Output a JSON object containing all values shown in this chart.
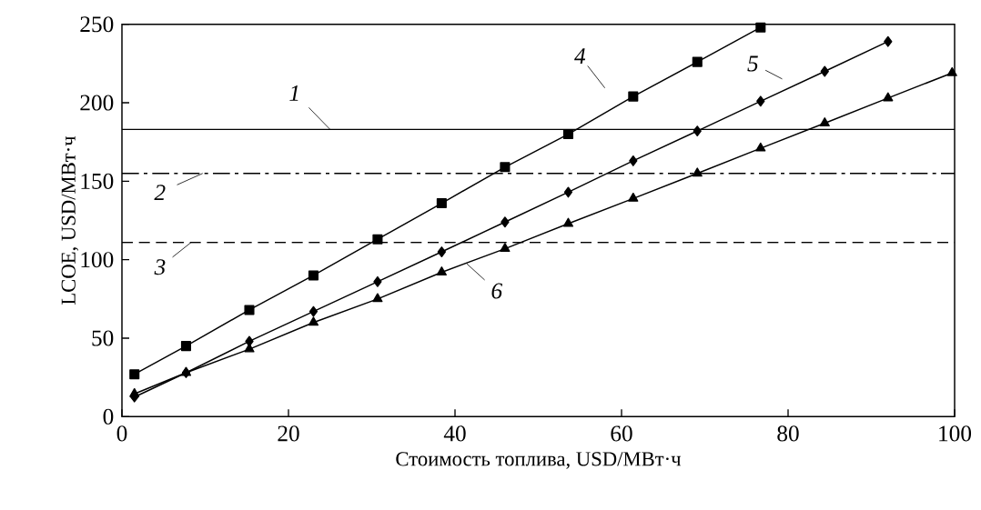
{
  "chart_data": {
    "type": "line",
    "xlabel": "Стоимость топлива, USD/МВт·ч",
    "ylabel": "LCOE, USD/МВт·ч",
    "xlim": [
      0,
      100
    ],
    "ylim": [
      0,
      250
    ],
    "xticks": [
      0,
      20,
      40,
      60,
      80,
      100
    ],
    "yticks": [
      0,
      50,
      100,
      150,
      200,
      250
    ],
    "series": [
      {
        "color": "#000000",
        "marker": "square",
        "x": [
          1.5,
          7.7,
          15.3,
          23.0,
          30.7,
          38.4,
          46.0,
          53.6,
          61.4,
          69.1,
          76.7
        ],
        "values": [
          27,
          45,
          68,
          90,
          113,
          136,
          159,
          180,
          204,
          226,
          248
        ]
      },
      {
        "color": "#000000",
        "marker": "diamond",
        "x": [
          1.5,
          7.7,
          15.3,
          23.0,
          30.7,
          38.4,
          46.0,
          53.6,
          61.4,
          69.1,
          76.7,
          84.4,
          92.0
        ],
        "values": [
          12.5,
          28,
          48,
          67,
          86,
          105,
          124,
          143,
          163,
          182,
          201,
          220,
          239
        ]
      },
      {
        "color": "#000000",
        "marker": "triangle",
        "x": [
          1.5,
          7.7,
          15.3,
          23.0,
          30.7,
          38.4,
          46.0,
          53.6,
          61.4,
          69.1,
          76.7,
          84.4,
          92.0,
          99.7
        ],
        "values": [
          14.5,
          28,
          43,
          60,
          75,
          92,
          107,
          123,
          139,
          155,
          171,
          187,
          203,
          219
        ]
      }
    ],
    "ref_lines": [
      {
        "axis": "y",
        "value": 183,
        "color": "#000000",
        "line_style": "solid"
      },
      {
        "axis": "y",
        "value": 155,
        "color": "#000000",
        "line_style": "dashdot"
      },
      {
        "axis": "y",
        "value": 111,
        "color": "#000000",
        "line_style": "dashed"
      }
    ],
    "annotations": [
      {
        "text": "1",
        "x": 25,
        "y": 183
      },
      {
        "text": "2",
        "x": 9.7,
        "y": 155
      },
      {
        "text": "3",
        "x": 8.3,
        "y": 111
      },
      {
        "text": "4",
        "x": 59.6,
        "y": 198.5
      },
      {
        "text": "5",
        "x": 80.8,
        "y": 211
      },
      {
        "text": "6",
        "x": 41.4,
        "y": 97.5
      }
    ]
  }
}
